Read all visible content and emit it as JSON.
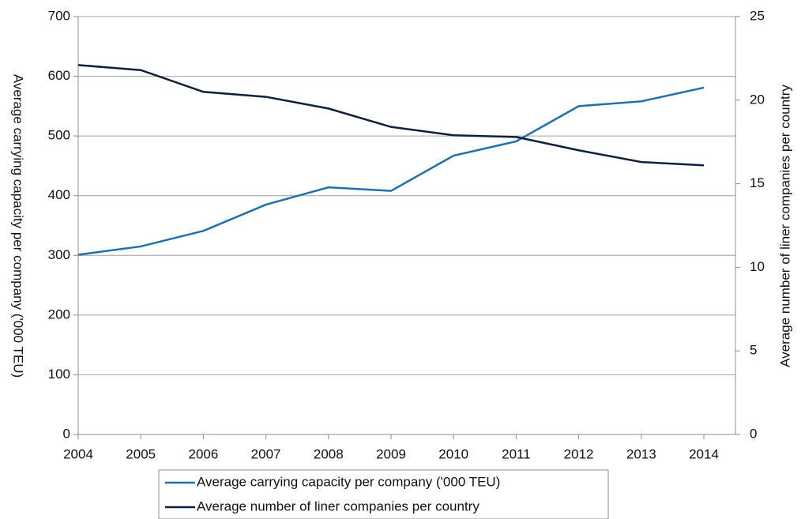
{
  "chart_data": {
    "type": "line",
    "categories": [
      "2004",
      "2005",
      "2006",
      "2007",
      "2008",
      "2009",
      "2010",
      "2011",
      "2012",
      "2013",
      "2014"
    ],
    "series": [
      {
        "name": "Average carrying capacity per company ('000 TEU)",
        "color": "#1f6fad",
        "values": [
          301,
          315,
          341,
          385,
          414,
          408,
          467,
          491,
          550,
          558,
          581
        ]
      },
      {
        "name": "Average number of liner companies per country",
        "color": "#0d1f3c",
        "axis": "y2",
        "values": [
          22.1,
          21.8,
          20.5,
          20.2,
          19.5,
          18.4,
          17.9,
          17.8,
          17.0,
          16.3,
          16.1
        ]
      }
    ],
    "ylabel": "Average carrying capacity per company ('000 TEU)",
    "y2label": "Average number of liner companies per country",
    "ylim": [
      0,
      700
    ],
    "yticks": [
      0,
      100,
      200,
      300,
      400,
      500,
      600,
      700
    ],
    "y2lim": [
      0,
      25
    ],
    "y2ticks": [
      0,
      5,
      10,
      15,
      20,
      25
    ],
    "grid": true,
    "legend": "bottom"
  }
}
